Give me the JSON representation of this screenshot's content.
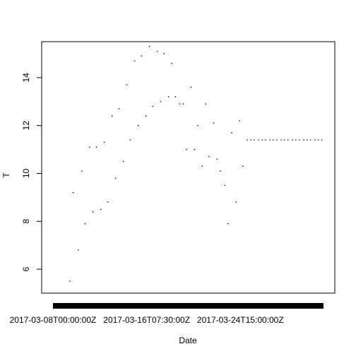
{
  "chart_data": {
    "type": "scatter",
    "title": "",
    "xlabel": "Date",
    "ylabel": "T",
    "x_domain": [
      "2017-03-08T00:00:00Z",
      "2017-04-01T00:00:00Z"
    ],
    "ylim": [
      5.0,
      15.5
    ],
    "x_tick_labels": [
      {
        "value": "2017-03-08T00:00:00Z",
        "label": "2017-03-08T00:00:00Z"
      },
      {
        "value": "2017-03-16T07:30:00Z",
        "label": "2017-03-16T07:30:00Z"
      },
      {
        "value": "2017-03-24T15:00:00Z",
        "label": "2017-03-24T15:00:00Z"
      }
    ],
    "y_ticks": [
      6,
      8,
      10,
      12,
      14
    ],
    "grid": false,
    "point_color": "#000000",
    "series": [
      {
        "x": [
          "2017-03-09T12:00:00Z",
          "2017-03-09T19:12:00Z",
          "2017-03-10T06:00:00Z",
          "2017-03-10T13:12:00Z",
          "2017-03-10T20:24:00Z",
          "2017-03-11T06:00:00Z",
          "2017-03-11T13:12:00Z",
          "2017-03-11T20:24:00Z",
          "2017-03-12T06:00:00Z",
          "2017-03-12T13:12:00Z",
          "2017-03-12T20:24:00Z",
          "2017-03-13T06:00:00Z",
          "2017-03-13T13:12:00Z",
          "2017-03-13T20:24:00Z",
          "2017-03-14T06:00:00Z",
          "2017-03-14T13:12:00Z",
          "2017-03-14T20:24:00Z",
          "2017-03-15T06:00:00Z",
          "2017-03-15T13:12:00Z",
          "2017-03-15T20:24:00Z",
          "2017-03-16T06:00:00Z",
          "2017-03-16T13:12:00Z",
          "2017-03-16T20:24:00Z",
          "2017-03-17T06:00:00Z",
          "2017-03-17T13:12:00Z",
          "2017-03-17T20:24:00Z",
          "2017-03-18T06:00:00Z",
          "2017-03-18T13:12:00Z",
          "2017-03-18T20:24:00Z",
          "2017-03-19T06:00:00Z",
          "2017-03-19T13:12:00Z",
          "2017-03-19T20:24:00Z",
          "2017-03-20T06:00:00Z",
          "2017-03-20T13:12:00Z",
          "2017-03-20T20:24:00Z",
          "2017-03-21T06:00:00Z",
          "2017-03-21T13:12:00Z",
          "2017-03-21T20:24:00Z",
          "2017-03-22T06:00:00Z",
          "2017-03-22T13:12:00Z",
          "2017-03-22T20:24:00Z",
          "2017-03-23T06:00:00Z",
          "2017-03-23T13:12:00Z",
          "2017-03-23T20:24:00Z",
          "2017-03-24T06:00:00Z",
          "2017-03-24T13:12:00Z",
          "2017-03-24T20:24:00Z",
          "2017-03-25T06:00:00Z",
          "2017-03-25T13:12:00Z",
          "2017-03-25T20:24:00Z",
          "2017-03-26T06:00:00Z",
          "2017-03-26T13:12:00Z",
          "2017-03-26T20:24:00Z",
          "2017-03-27T06:00:00Z",
          "2017-03-27T13:12:00Z",
          "2017-03-27T20:24:00Z",
          "2017-03-28T06:00:00Z",
          "2017-03-28T13:12:00Z",
          "2017-03-28T20:24:00Z",
          "2017-03-29T06:00:00Z",
          "2017-03-29T13:12:00Z",
          "2017-03-29T20:24:00Z",
          "2017-03-30T06:00:00Z",
          "2017-03-30T13:12:00Z",
          "2017-03-30T20:24:00Z",
          "2017-03-31T06:00:00Z",
          "2017-03-31T13:12:00Z",
          "2017-03-31T20:24:00Z"
        ],
        "y": [
          5.5,
          9.2,
          6.8,
          10.1,
          7.9,
          11.1,
          8.4,
          11.1,
          8.5,
          11.3,
          8.8,
          12.4,
          9.8,
          12.7,
          10.5,
          13.7,
          11.4,
          14.7,
          12.0,
          14.9,
          12.4,
          15.3,
          12.8,
          15.1,
          13.0,
          15.0,
          13.2,
          14.6,
          13.2,
          12.9,
          12.9,
          11.0,
          13.6,
          11.0,
          12.0,
          10.3,
          12.9,
          10.7,
          12.1,
          10.6,
          10.1,
          9.5,
          7.9,
          11.7,
          8.8,
          12.2,
          10.3,
          11.4,
          11.4,
          11.4,
          11.4,
          11.4,
          11.4,
          11.4,
          11.4,
          11.4,
          11.4,
          11.4,
          11.4,
          11.4,
          11.4,
          11.4,
          11.4,
          11.4,
          11.4,
          11.4,
          11.4,
          11.4
        ]
      }
    ]
  }
}
